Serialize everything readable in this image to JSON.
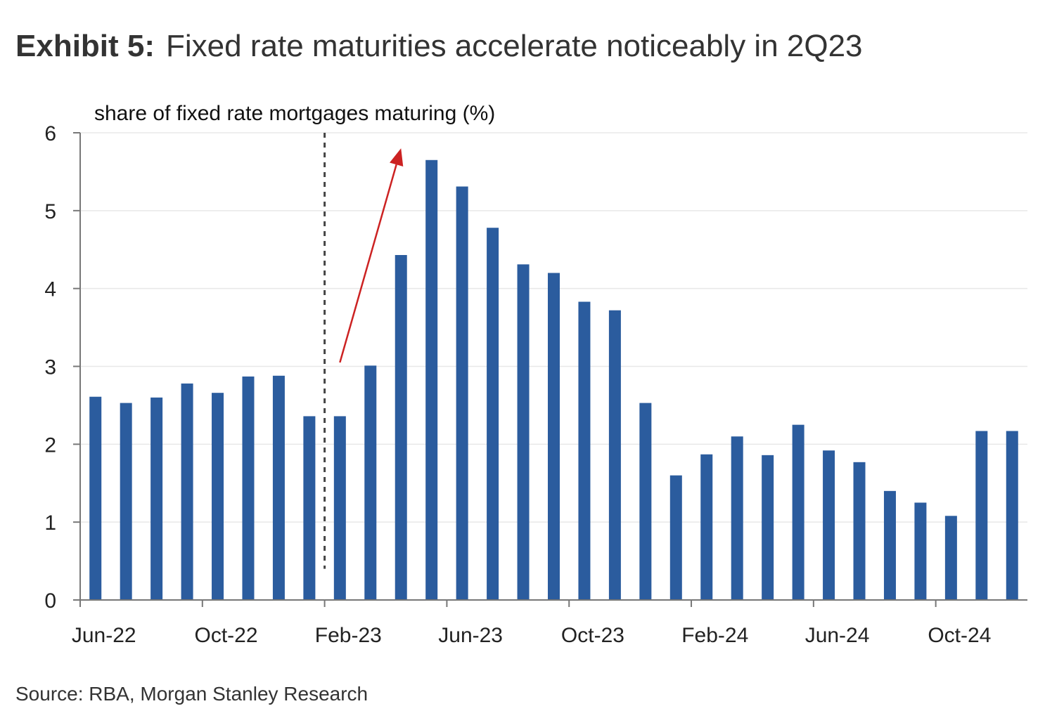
{
  "exhibit": {
    "label": "Exhibit 5:",
    "title": "Fixed rate maturities accelerate noticeably in 2Q23"
  },
  "source": "Source: RBA, Morgan Stanley Research",
  "colors": {
    "bar": "#2B5C9E",
    "annotation_arrow": "#CC2222",
    "divider_line": "#444444",
    "gridline": "#E8E8E8",
    "axis": "#777777"
  },
  "chart_data": {
    "type": "bar",
    "ylabel": "share of fixed rate mortgages maturing (%)",
    "ylim": [
      0,
      6
    ],
    "yticks": [
      0,
      1,
      2,
      3,
      4,
      5,
      6
    ],
    "grid": true,
    "categories": [
      "Jun-22",
      "Jul-22",
      "Aug-22",
      "Sep-22",
      "Oct-22",
      "Nov-22",
      "Dec-22",
      "Jan-23",
      "Feb-23",
      "Mar-23",
      "Apr-23",
      "May-23",
      "Jun-23",
      "Jul-23",
      "Aug-23",
      "Sep-23",
      "Oct-23",
      "Nov-23",
      "Dec-23",
      "Jan-24",
      "Feb-24",
      "Mar-24",
      "Apr-24",
      "May-24",
      "Jun-24",
      "Jul-24",
      "Aug-24",
      "Sep-24",
      "Oct-24",
      "Nov-24",
      "Dec-24"
    ],
    "x_tick_labels": [
      "Jun-22",
      "Oct-22",
      "Feb-23",
      "Jun-23",
      "Oct-23",
      "Feb-24",
      "Jun-24",
      "Oct-24"
    ],
    "values": [
      2.61,
      2.53,
      2.6,
      2.78,
      2.66,
      2.87,
      2.88,
      2.36,
      2.36,
      3.01,
      4.43,
      5.65,
      5.31,
      4.78,
      4.31,
      4.2,
      3.83,
      3.72,
      2.53,
      1.6,
      1.87,
      2.1,
      1.86,
      2.25,
      1.92,
      1.77,
      1.4,
      1.25,
      1.08,
      2.17,
      2.17
    ],
    "annotations": {
      "divider_between": [
        "Jan-23",
        "Feb-23"
      ],
      "arrow": {
        "from": {
          "category": "Feb-23",
          "value": 3.05
        },
        "to": {
          "category": "Apr-23",
          "value": 5.8
        }
      }
    }
  }
}
